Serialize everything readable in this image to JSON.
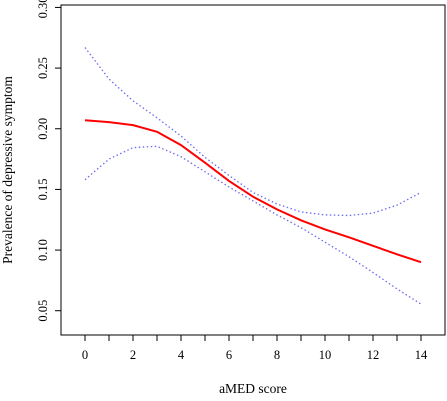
{
  "chart_data": {
    "type": "line",
    "title": "",
    "xlabel": "aMED score",
    "ylabel": "Prevalence of depressive symptom",
    "xlim": [
      -1,
      15
    ],
    "ylim": [
      0.03,
      0.302
    ],
    "x_ticks": [
      0,
      2,
      4,
      6,
      8,
      10,
      12,
      14
    ],
    "x_minor_ticks": [
      1,
      3,
      5,
      7,
      9,
      11,
      13
    ],
    "y_ticks": [
      0.05,
      0.1,
      0.15,
      0.2,
      0.25,
      0.3
    ],
    "y_tick_labels": [
      "0.05",
      "0.10",
      "0.15",
      "0.20",
      "0.25",
      "0.30"
    ],
    "grid": false,
    "legend": "none",
    "x": [
      0,
      1,
      2,
      3,
      4,
      5,
      6,
      7,
      8,
      9,
      10,
      11,
      12,
      13,
      14
    ],
    "series": [
      {
        "values": [
          0.207,
          0.2055,
          0.203,
          0.1975,
          0.1865,
          0.172,
          0.157,
          0.144,
          0.1335,
          0.1245,
          0.117,
          0.1105,
          0.1035,
          0.0965,
          0.09
        ],
        "color": "#ff0000",
        "style": "solid"
      },
      {
        "values": [
          0.267,
          0.241,
          0.223,
          0.209,
          0.194,
          0.1765,
          0.1615,
          0.1475,
          0.138,
          0.1315,
          0.129,
          0.1285,
          0.1305,
          0.137,
          0.1475
        ],
        "color": "#6b6bef",
        "style": "dotted"
      },
      {
        "values": [
          0.158,
          0.175,
          0.1845,
          0.1855,
          0.177,
          0.1645,
          0.152,
          0.1405,
          0.129,
          0.1185,
          0.1065,
          0.0945,
          0.0815,
          0.068,
          0.0555
        ],
        "color": "#6b6bef",
        "style": "dotted"
      }
    ]
  }
}
